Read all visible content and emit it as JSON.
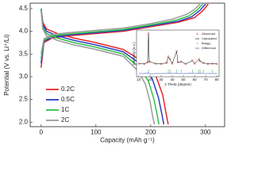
{
  "chart_data": [
    {
      "type": "line",
      "xlabel": "Capacity (mAh g⁻¹)",
      "ylabel": "Potential (V vs. Li⁺/Li)",
      "xlim": [
        -20,
        335
      ],
      "ylim": [
        1.9,
        4.62
      ],
      "xticks": [
        0,
        100,
        200,
        300
      ],
      "yticks": [
        {
          "value": 2.0,
          "label": "2.0"
        },
        {
          "value": 2.5,
          "label": "2.5"
        },
        {
          "value": 3.0,
          "label": "3.0"
        },
        {
          "value": 3.5,
          "label": "3.5"
        },
        {
          "value": 4.0,
          "label": "4.0"
        },
        {
          "value": 4.5,
          "label": "4.5"
        }
      ],
      "legend": "lower left",
      "series": [
        {
          "name": "0.2C",
          "color": "#e8262a",
          "x": [
            0,
            5,
            20,
            50,
            100,
            150,
            200,
            250,
            280,
            295,
            305,
            null,
            0,
            3,
            10,
            30,
            60,
            100,
            150,
            190,
            210,
            222,
            228,
            232
          ],
          "values": [
            3.2,
            3.75,
            3.85,
            3.9,
            3.95,
            4.0,
            4.1,
            4.2,
            4.3,
            4.45,
            4.6,
            null,
            4.5,
            4.2,
            4.05,
            3.95,
            3.85,
            3.75,
            3.6,
            3.3,
            3.0,
            2.6,
            2.2,
            1.95
          ]
        },
        {
          "name": "0.5C",
          "color": "#2a3fbf",
          "x": [
            0,
            5,
            20,
            50,
            100,
            150,
            200,
            250,
            275,
            290,
            300,
            null,
            0,
            3,
            10,
            30,
            60,
            100,
            150,
            185,
            203,
            214,
            220,
            224
          ],
          "values": [
            3.3,
            3.78,
            3.87,
            3.92,
            3.97,
            4.02,
            4.12,
            4.22,
            4.32,
            4.46,
            4.6,
            null,
            4.5,
            4.15,
            4.0,
            3.9,
            3.8,
            3.7,
            3.55,
            3.25,
            2.95,
            2.55,
            2.2,
            1.95
          ]
        },
        {
          "name": "1C",
          "color": "#2fbf4a",
          "x": [
            0,
            5,
            20,
            50,
            100,
            150,
            200,
            245,
            270,
            285,
            295,
            null,
            0,
            3,
            10,
            30,
            60,
            100,
            150,
            180,
            196,
            206,
            212,
            215
          ],
          "values": [
            3.4,
            3.8,
            3.9,
            3.94,
            3.99,
            4.04,
            4.14,
            4.24,
            4.34,
            4.47,
            4.6,
            null,
            4.5,
            4.1,
            3.95,
            3.85,
            3.75,
            3.65,
            3.5,
            3.2,
            2.9,
            2.5,
            2.15,
            1.95
          ]
        },
        {
          "name": "2C",
          "color": "#9a9a9a",
          "x": [
            0,
            5,
            20,
            50,
            100,
            150,
            200,
            240,
            265,
            280,
            290,
            null,
            0,
            3,
            10,
            30,
            60,
            100,
            150,
            175,
            190,
            199,
            204,
            207
          ],
          "values": [
            3.5,
            3.83,
            3.93,
            3.97,
            4.02,
            4.07,
            4.17,
            4.27,
            4.37,
            4.48,
            4.6,
            null,
            4.45,
            4.05,
            3.9,
            3.8,
            3.7,
            3.6,
            3.45,
            3.15,
            2.85,
            2.45,
            2.1,
            1.95
          ]
        }
      ]
    },
    {
      "type": "line",
      "xlabel": "2 Theta (degree)",
      "ylabel": "Intensity (a.u.)",
      "xlim": [
        8,
        82
      ],
      "ylim": [
        -35,
        110
      ],
      "xticks": [
        10,
        20,
        30,
        40,
        50,
        60,
        70,
        80
      ],
      "legend": "upper right",
      "series": [
        {
          "name": "Observed",
          "color": "#d42020",
          "marker": "circle",
          "x": [
            10,
            15,
            18,
            18.7,
            19.5,
            25,
            30,
            35,
            36.5,
            38,
            40,
            44,
            45,
            48,
            52,
            58,
            60,
            64,
            65,
            68,
            72,
            76,
            80
          ],
          "values": [
            6,
            5,
            10,
            100,
            12,
            6,
            5,
            8,
            28,
            20,
            6,
            45,
            10,
            12,
            5,
            16,
            6,
            20,
            14,
            8,
            5,
            6,
            5
          ]
        },
        {
          "name": "Calculated",
          "color": "#000000",
          "x": [
            10,
            15,
            18,
            18.7,
            19.5,
            25,
            30,
            35,
            36.5,
            38,
            40,
            44,
            45,
            48,
            52,
            58,
            60,
            64,
            65,
            68,
            72,
            76,
            80
          ],
          "values": [
            6,
            5,
            10,
            98,
            12,
            6,
            5,
            8,
            27,
            19,
            6,
            44,
            10,
            12,
            5,
            15,
            6,
            19,
            13,
            8,
            5,
            6,
            5
          ]
        },
        {
          "name": "Bragg",
          "color": "#2fa84a",
          "marker": "tick",
          "x": [
            18.7,
            36.5,
            38,
            44,
            48,
            58,
            64,
            65,
            68,
            76
          ]
        },
        {
          "name": "Difference",
          "color": "#2a3fbf",
          "x": [
            10,
            15,
            18,
            18.7,
            19.5,
            25,
            30,
            35,
            36.5,
            38,
            40,
            44,
            45,
            48,
            52,
            58,
            60,
            64,
            65,
            68,
            72,
            76,
            80
          ],
          "values": [
            -25,
            -25,
            -24,
            -21,
            -26,
            -25,
            -25,
            -25,
            -24,
            -24,
            -25,
            -24,
            -25,
            -25,
            -25,
            -24,
            -25,
            -24,
            -24,
            -25,
            -25,
            -25,
            -25
          ]
        }
      ]
    }
  ]
}
